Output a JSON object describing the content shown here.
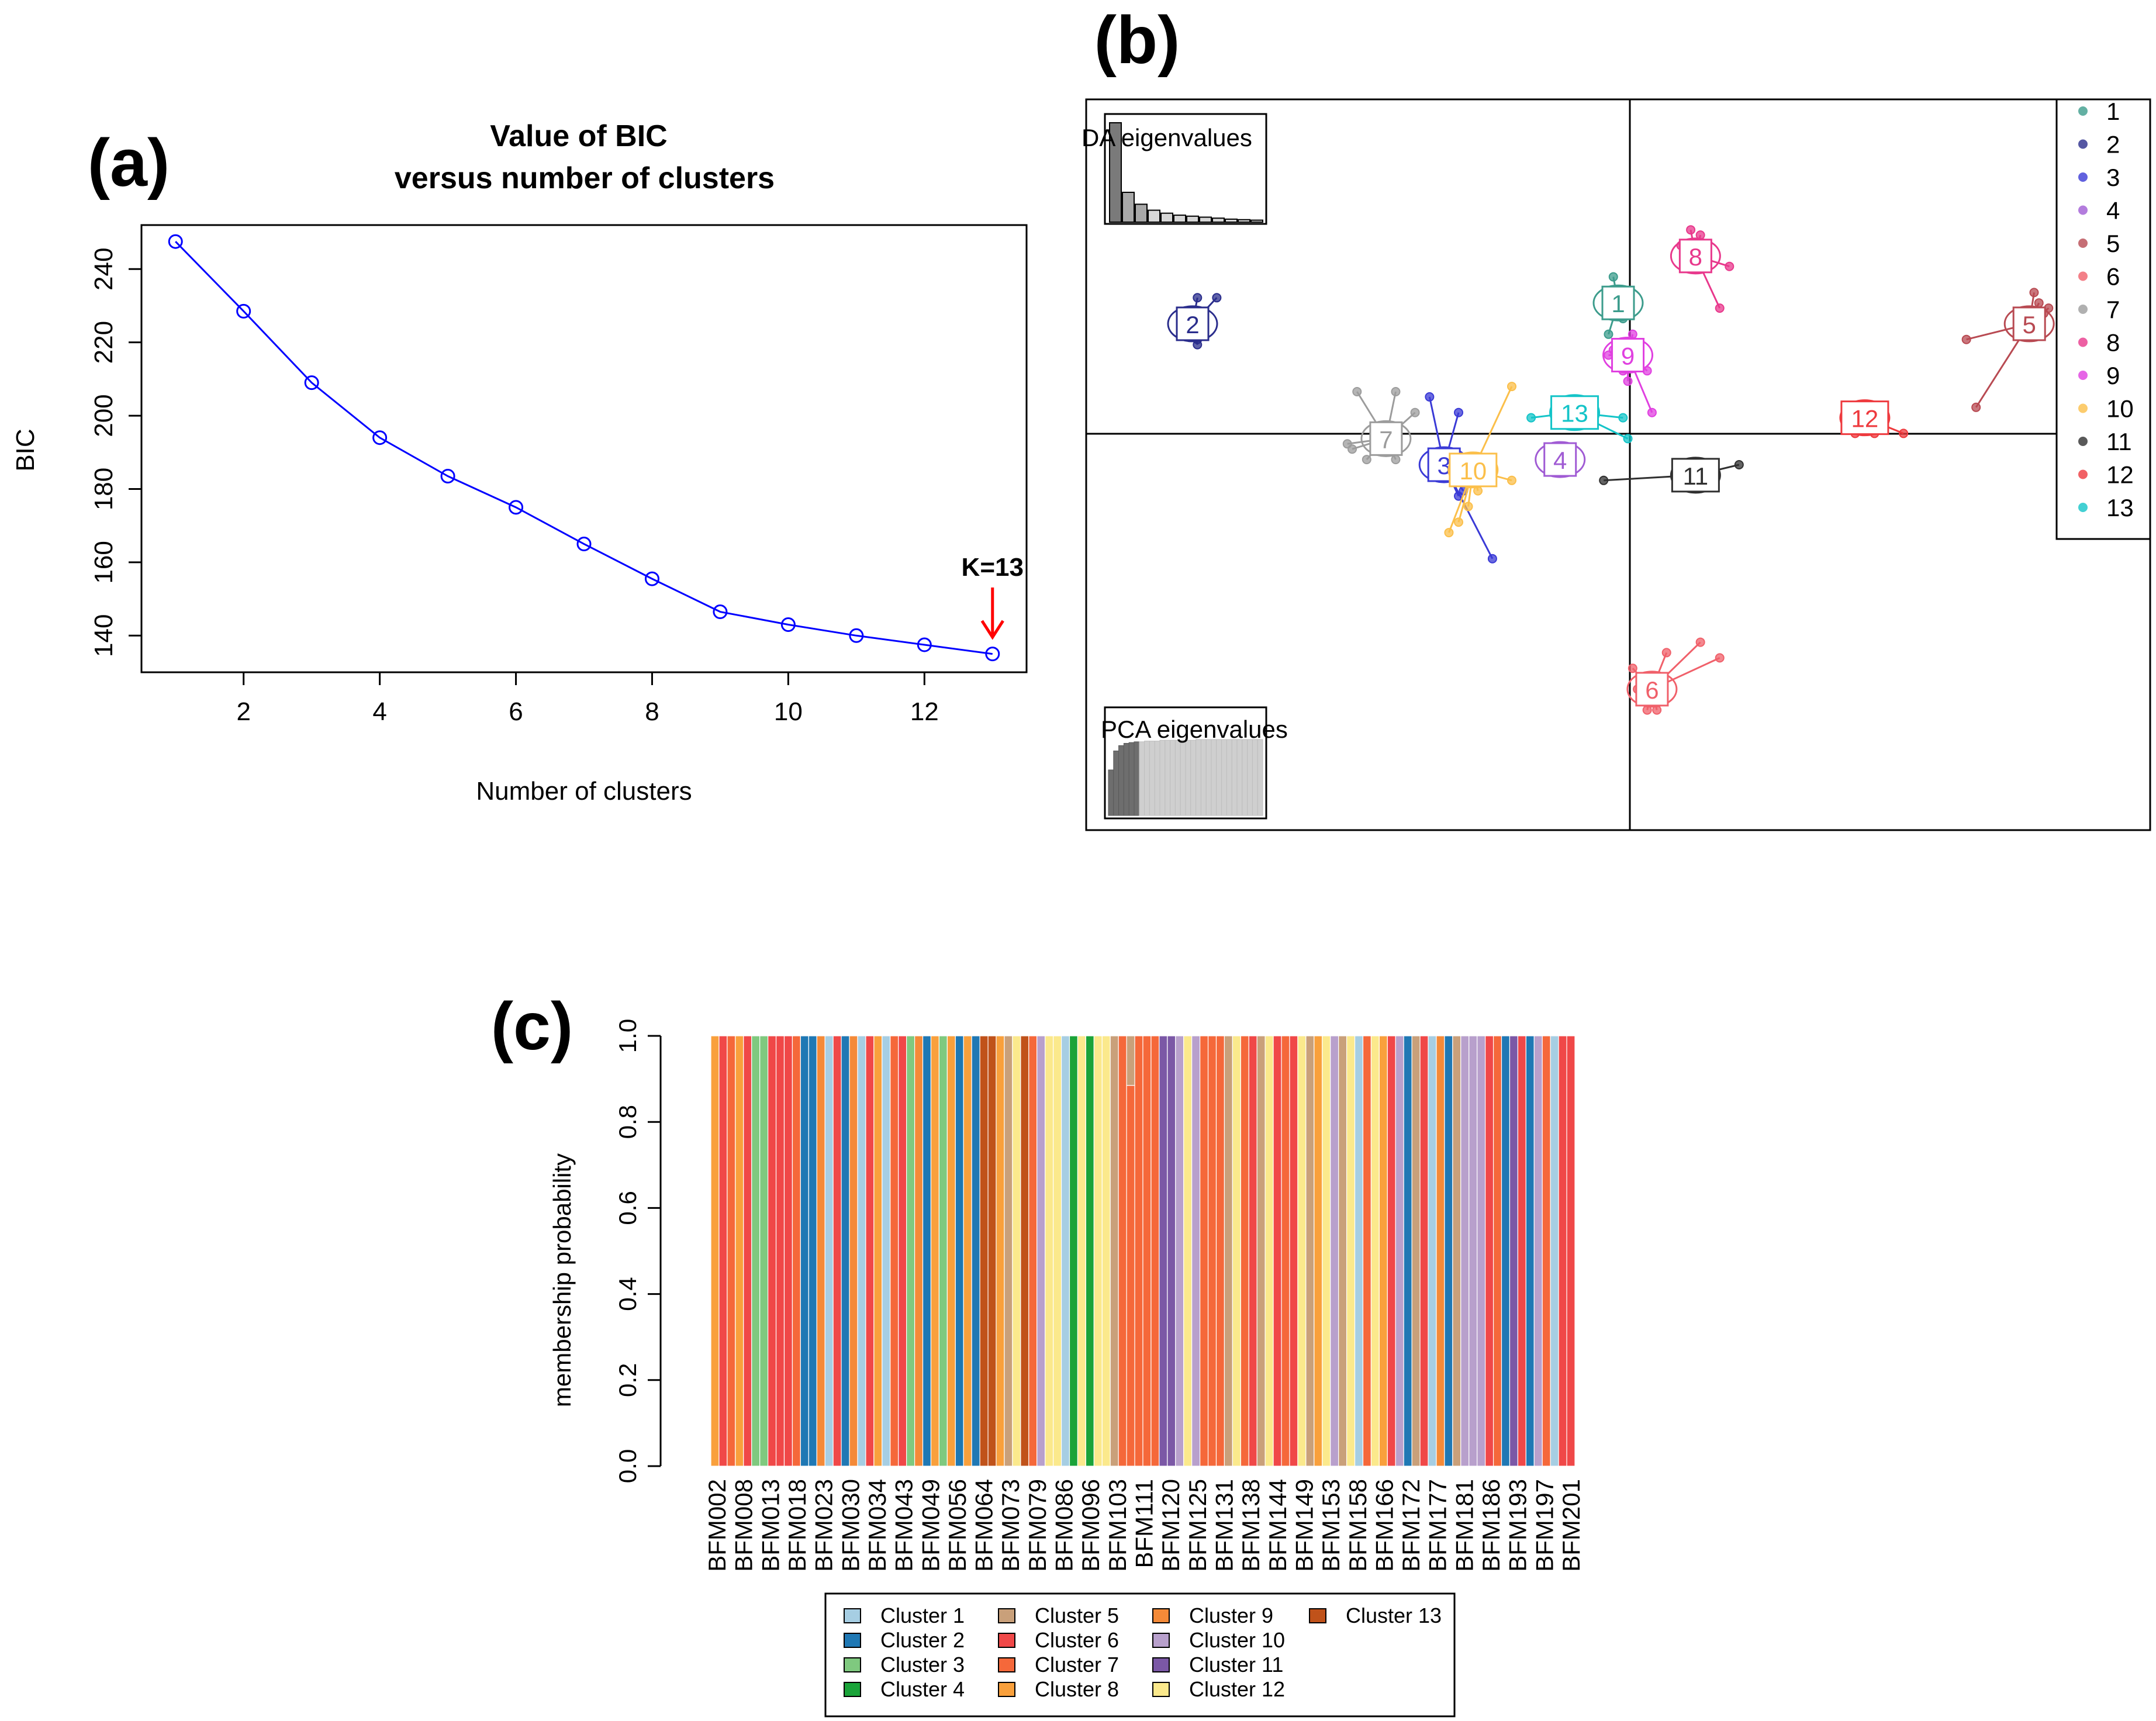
{
  "panel_labels": [
    "(a)",
    "(b)",
    "(c)"
  ],
  "chart_data": [
    {
      "panel": "(a)",
      "type": "line",
      "title_lines": [
        "Value of BIC",
        "versus number of clusters"
      ],
      "xlabel": "Number of clusters",
      "ylabel": "BIC",
      "x": [
        1,
        2,
        3,
        4,
        5,
        6,
        7,
        8,
        9,
        10,
        11,
        12,
        13
      ],
      "values": [
        247.5,
        228.5,
        209,
        194,
        183.5,
        175,
        165,
        155.5,
        146.5,
        143,
        140,
        137.5,
        135
      ],
      "xlim": [
        0.5,
        13.5
      ],
      "ylim": [
        130,
        252
      ],
      "xticks": [
        2,
        4,
        6,
        8,
        10,
        12
      ],
      "yticks": [
        140,
        160,
        180,
        200,
        220,
        240
      ],
      "line_color": "#0000ff",
      "annotation": {
        "text": "K=13",
        "x": 13,
        "color": "#ff0000"
      }
    },
    {
      "panel": "(b)",
      "type": "scatter",
      "inset_labels": [
        "DA eigenvalues",
        "PCA eigenvalues"
      ],
      "da_eigenvalues": [
        100,
        30,
        18,
        12,
        9,
        7,
        6,
        5,
        4,
        3,
        2.5,
        2
      ],
      "pca_eigenvalues": [
        60,
        85,
        92,
        95,
        96,
        97,
        97,
        98,
        98,
        98,
        99,
        99,
        99,
        99,
        99,
        99,
        99,
        100,
        100,
        100,
        100,
        100,
        100,
        100,
        100,
        100,
        100,
        100,
        100,
        100
      ],
      "pca_retained": 6,
      "xlim": [
        -11,
        11
      ],
      "ylim": [
        -7.5,
        6.5
      ],
      "legend": [
        "1",
        "2",
        "3",
        "4",
        "5",
        "6",
        "7",
        "8",
        "9",
        "10",
        "11",
        "12",
        "13"
      ],
      "colors": [
        "#3c9c8c",
        "#2a2d8c",
        "#3a3ad6",
        "#a05bd4",
        "#b84a52",
        "#f0606a",
        "#9c9c9c",
        "#e8388c",
        "#e040e0",
        "#fbbf4a",
        "#303030",
        "#ee3a3e",
        "#14c4c8"
      ],
      "clusters": [
        {
          "label": "1",
          "centroid": [
            0.0,
            2.6
          ],
          "points": [
            [
              -0.1,
              3.1
            ],
            [
              0.1,
              2.3
            ],
            [
              -0.2,
              2.0
            ],
            [
              0.2,
              2.8
            ]
          ]
        },
        {
          "label": "2",
          "centroid": [
            -8.8,
            2.2
          ],
          "points": [
            [
              -8.7,
              2.7
            ],
            [
              -8.3,
              2.7
            ],
            [
              -8.7,
              1.8
            ],
            [
              -8.7,
              1.9
            ]
          ]
        },
        {
          "label": "3",
          "centroid": [
            -3.6,
            -0.5
          ],
          "points": [
            [
              -3.9,
              0.8
            ],
            [
              -3.3,
              0.5
            ],
            [
              -2.6,
              -2.3
            ],
            [
              -3.2,
              -1.0
            ],
            [
              -3.3,
              -1.1
            ],
            [
              -3.7,
              -0.7
            ]
          ]
        },
        {
          "label": "4",
          "centroid": [
            -1.2,
            -0.4
          ],
          "points": [
            [
              -1.2,
              -0.2
            ]
          ]
        },
        {
          "label": "5",
          "centroid": [
            8.5,
            2.2
          ],
          "points": [
            [
              8.6,
              2.8
            ],
            [
              8.9,
              2.5
            ],
            [
              7.2,
              1.9
            ],
            [
              7.4,
              0.6
            ],
            [
              8.8,
              2.4
            ],
            [
              8.7,
              2.6
            ]
          ]
        },
        {
          "label": "6",
          "centroid": [
            0.7,
            -4.8
          ],
          "points": [
            [
              0.3,
              -4.4
            ],
            [
              1.0,
              -4.1
            ],
            [
              1.7,
              -3.9
            ],
            [
              2.1,
              -4.2
            ],
            [
              0.6,
              -5.2
            ],
            [
              0.4,
              -4.8
            ],
            [
              0.8,
              -5.2
            ]
          ]
        },
        {
          "label": "7",
          "centroid": [
            -4.8,
            0.0
          ],
          "points": [
            [
              -5.4,
              0.9
            ],
            [
              -4.6,
              0.9
            ],
            [
              -4.2,
              0.5
            ],
            [
              -5.2,
              -0.4
            ],
            [
              -5.5,
              -0.2
            ],
            [
              -4.6,
              -0.4
            ],
            [
              -5.6,
              -0.1
            ]
          ]
        },
        {
          "label": "8",
          "centroid": [
            1.6,
            3.5
          ],
          "points": [
            [
              1.5,
              4.0
            ],
            [
              2.3,
              3.3
            ],
            [
              2.1,
              2.5
            ],
            [
              1.4,
              3.5
            ],
            [
              1.3,
              3.7
            ],
            [
              1.7,
              3.9
            ]
          ]
        },
        {
          "label": "9",
          "centroid": [
            0.2,
            1.6
          ],
          "points": [
            [
              0.0,
              1.8
            ],
            [
              0.6,
              1.3
            ],
            [
              0.7,
              0.5
            ],
            [
              0.2,
              1.1
            ],
            [
              -0.2,
              1.6
            ],
            [
              0.3,
              2.0
            ],
            [
              0.1,
              1.3
            ],
            [
              -0.1,
              1.7
            ]
          ]
        },
        {
          "label": "10",
          "centroid": [
            -3.0,
            -0.6
          ],
          "points": [
            [
              -2.2,
              1.0
            ],
            [
              -3.3,
              -1.6
            ],
            [
              -3.5,
              -1.8
            ],
            [
              -2.2,
              -0.8
            ],
            [
              -2.9,
              -1.0
            ],
            [
              -3.1,
              -1.3
            ]
          ]
        },
        {
          "label": "11",
          "centroid": [
            1.6,
            -0.7
          ],
          "points": [
            [
              -0.3,
              -0.8
            ],
            [
              2.5,
              -0.5
            ]
          ]
        },
        {
          "label": "12",
          "centroid": [
            5.1,
            0.4
          ],
          "points": [
            [
              4.7,
              0.3
            ],
            [
              5.5,
              0.2
            ],
            [
              5.9,
              0.1
            ],
            [
              4.9,
              0.1
            ],
            [
              5.3,
              0.1
            ]
          ]
        },
        {
          "label": "13",
          "centroid": [
            -0.9,
            0.5
          ],
          "points": [
            [
              -1.8,
              0.4
            ],
            [
              -1.3,
              0.3
            ],
            [
              0.1,
              0.4
            ],
            [
              0.2,
              0.0
            ],
            [
              -0.5,
              0.6
            ]
          ]
        }
      ]
    },
    {
      "panel": "(c)",
      "type": "bar",
      "ylabel": "membership probability",
      "ylim": [
        0,
        1
      ],
      "yticks": [
        "0.0",
        "0.2",
        "0.4",
        "0.6",
        "0.8",
        "1.0"
      ],
      "tick_labels": [
        "BFM002",
        "BFM008",
        "BFM013",
        "BFM018",
        "BFM023",
        "BFM030",
        "BFM034",
        "BFM043",
        "BFM049",
        "BFM056",
        "BFM064",
        "BFM073",
        "BFM079",
        "BFM086",
        "BFM096",
        "BFM103",
        "BFM111",
        "BFM120",
        "BFM125",
        "BFM131",
        "BFM138",
        "BFM144",
        "BFM149",
        "BFM153",
        "BFM158",
        "BFM166",
        "BFM172",
        "BFM177",
        "BFM181",
        "BFM186",
        "BFM193",
        "BFM197",
        "BFM201"
      ],
      "series": [
        {
          "name": "Cluster 1",
          "color": "#a6cee3"
        },
        {
          "name": "Cluster 2",
          "color": "#1f78b4"
        },
        {
          "name": "Cluster 3",
          "color": "#7fc97f"
        },
        {
          "name": "Cluster 4",
          "color": "#1aa339"
        },
        {
          "name": "Cluster 5",
          "color": "#c9a07a"
        },
        {
          "name": "Cluster 6",
          "color": "#f04848"
        },
        {
          "name": "Cluster 7",
          "color": "#f5683a"
        },
        {
          "name": "Cluster 8",
          "color": "#f9a03c"
        },
        {
          "name": "Cluster 9",
          "color": "#f48a38"
        },
        {
          "name": "Cluster 10",
          "color": "#b8a0cc"
        },
        {
          "name": "Cluster 11",
          "color": "#7b58a6"
        },
        {
          "name": "Cluster 12",
          "color": "#fbe98c"
        },
        {
          "name": "Cluster 13",
          "color": "#c0521a"
        }
      ],
      "individual_clusters": [
        8,
        6,
        7,
        8,
        6,
        3,
        3,
        6,
        6,
        6,
        7,
        2,
        2,
        9,
        1,
        6,
        2,
        9,
        1,
        6,
        8,
        1,
        7,
        6,
        3,
        9,
        2,
        8,
        3,
        8,
        2,
        8,
        2,
        13,
        13,
        8,
        5,
        12,
        13,
        7,
        10,
        12,
        12,
        1,
        4,
        12,
        4,
        12,
        12,
        5,
        7,
        7,
        7,
        7,
        7,
        11,
        11,
        10,
        12,
        10,
        7,
        7,
        7,
        5,
        12,
        7,
        6,
        5,
        12,
        6,
        7,
        6,
        12,
        5,
        8,
        12,
        10,
        5,
        12,
        1,
        7,
        12,
        8,
        6,
        10,
        2,
        5,
        6,
        1,
        9,
        2,
        5,
        10,
        10,
        10,
        6,
        7,
        2,
        11,
        6,
        2,
        10,
        7,
        1,
        6,
        6
      ],
      "partial_bars": [
        {
          "index": 51,
          "value": 0.885,
          "top_cluster": 5
        }
      ]
    }
  ]
}
